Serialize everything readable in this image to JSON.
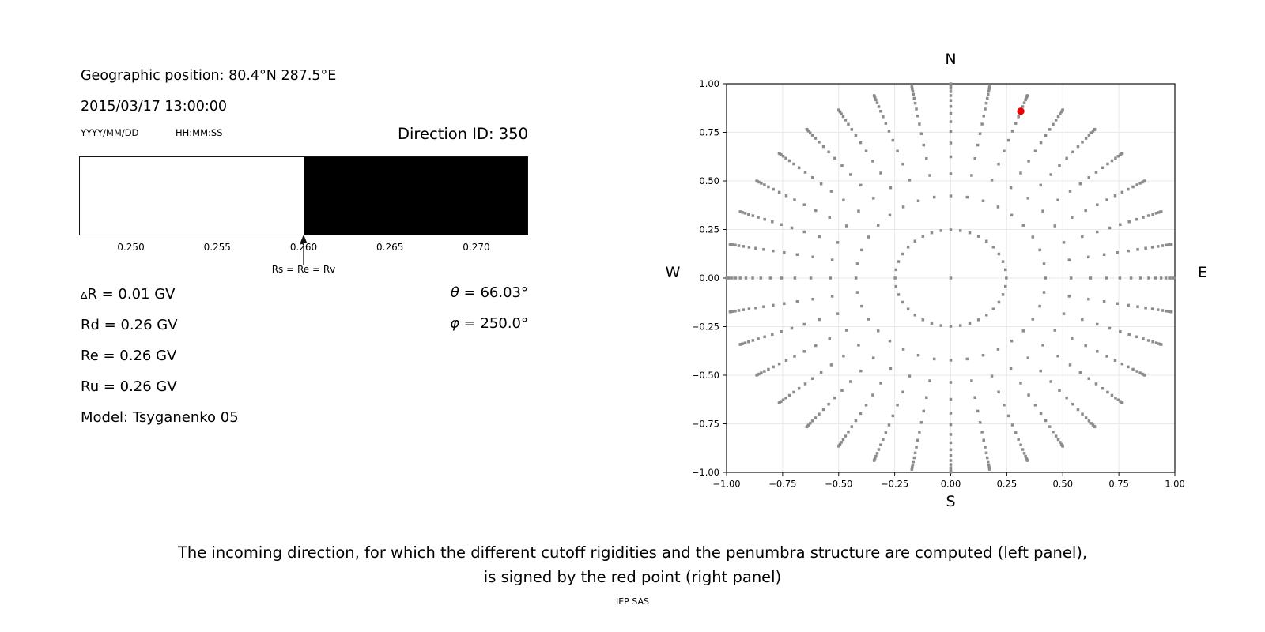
{
  "header": {
    "geo_position": "Geographic position: 80.4°N 287.5°E",
    "datetime": "2015/03/17 13:00:00",
    "date_format_hint": "YYYY/MM/DD",
    "time_format_hint": "HH:MM:SS",
    "direction_id": "Direction ID: 350"
  },
  "cutoff_values": {
    "delta_r": {
      "symbol": "∆",
      "text": "R = 0.01 GV"
    },
    "rd": "Rd = 0.26 GV",
    "re": "Re = 0.26 GV",
    "ru": "Ru = 0.26 GV",
    "model": "Model: Tsyganenko 05",
    "theta": {
      "symbol": "θ",
      "text": " = 66.03°"
    },
    "phi": {
      "symbol": "φ",
      "text": " = 250.0°"
    }
  },
  "caption": {
    "line1": "The incoming direction, for which the different cutoff rigidities and the penumbra structure are computed (left panel),",
    "line2": "is signed by the red point (right panel)",
    "credit": "IEP SAS"
  },
  "chart_data": [
    {
      "type": "bar",
      "title": "penumbra structure strip",
      "xlabel": "",
      "xlim": [
        0.247,
        0.273
      ],
      "xtick_values": [
        0.25,
        0.255,
        0.26,
        0.265,
        0.27
      ],
      "xtick_labels": [
        "0.250",
        "0.255",
        "0.260",
        "0.265",
        "0.270"
      ],
      "segments": [
        {
          "from": 0.247,
          "to": 0.26,
          "color": "#ffffff"
        },
        {
          "from": 0.26,
          "to": 0.273,
          "color": "#000000"
        }
      ],
      "annotation": {
        "x": 0.26,
        "label": "Rs = Re = Rv"
      }
    },
    {
      "type": "scatter",
      "title": "incoming directions sky map",
      "xlim": [
        -1,
        1
      ],
      "ylim": [
        -1,
        1
      ],
      "xtick_values": [
        -1,
        -0.75,
        -0.5,
        -0.25,
        0,
        0.25,
        0.5,
        0.75,
        1
      ],
      "xtick_labels": [
        "−1.00",
        "−0.75",
        "−0.50",
        "−0.25",
        "0.00",
        "0.25",
        "0.50",
        "0.75",
        "1.00"
      ],
      "ytick_values": [
        -1,
        -0.75,
        -0.5,
        -0.25,
        0,
        0.25,
        0.5,
        0.75,
        1
      ],
      "ytick_labels": [
        "−1.00",
        "−0.75",
        "−0.50",
        "−0.25",
        "0.00",
        "0.25",
        "0.50",
        "0.75",
        "1.00"
      ],
      "compass": {
        "top": "N",
        "bottom": "S",
        "left": "W",
        "right": "E"
      },
      "grid": true,
      "grid_color": "#e9e9e9",
      "point_color": "#8c8c8c",
      "directions_grid": {
        "azimuth_count": 36,
        "azimuth_step_deg": 10,
        "zenith_cosines": [
          0.96875,
          0.90625,
          0.84375,
          0.78125,
          0.71875,
          0.65625,
          0.59375,
          0.53125,
          0.46875,
          0.40625,
          0.34375,
          0.28125,
          0.21875,
          0.15625,
          0.09375,
          0.03125
        ],
        "radius_rule": "r = sin(acos(cos_zenith))",
        "center_point": true
      },
      "highlight_point": {
        "x": 0.3125,
        "y": 0.8588,
        "color": "#ee0000"
      }
    }
  ]
}
